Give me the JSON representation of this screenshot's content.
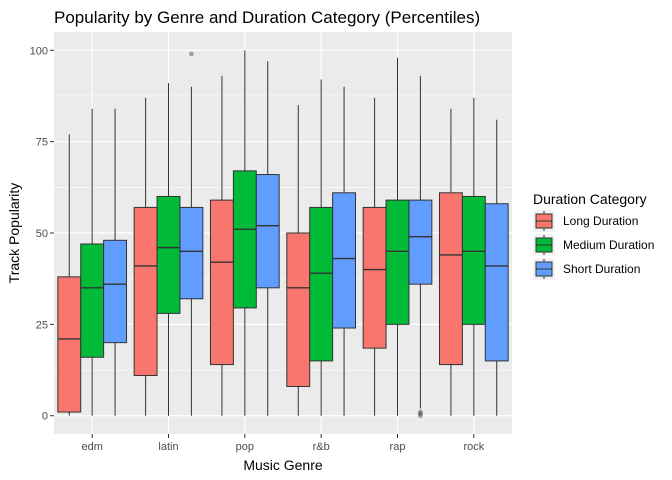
{
  "chart_data": {
    "type": "boxplot",
    "title": "Popularity by Genre and Duration Category (Percentiles)",
    "xlabel": "Music Genre",
    "ylabel": "Track Popularity",
    "ylim": [
      0,
      100
    ],
    "yticks": [
      0,
      25,
      50,
      75,
      100
    ],
    "grid": true,
    "legend_placement": "right",
    "legend_title": "Duration Category",
    "categories": [
      "edm",
      "latin",
      "pop",
      "r&b",
      "rap",
      "rock"
    ],
    "series": [
      {
        "name": "Long Duration",
        "color": "#F8766D",
        "boxes": [
          {
            "min": 0,
            "q1": 1,
            "median": 21,
            "q3": 38,
            "max": 77,
            "outliers": []
          },
          {
            "min": 0,
            "q1": 11,
            "median": 41,
            "q3": 57,
            "max": 87,
            "outliers": []
          },
          {
            "min": 0,
            "q1": 14,
            "median": 42,
            "q3": 59,
            "max": 93,
            "outliers": []
          },
          {
            "min": 0,
            "q1": 8,
            "median": 35,
            "q3": 50,
            "max": 85,
            "outliers": []
          },
          {
            "min": 0,
            "q1": 18.5,
            "median": 40,
            "q3": 57,
            "max": 87,
            "outliers": []
          },
          {
            "min": 0,
            "q1": 14,
            "median": 44,
            "q3": 61,
            "max": 84,
            "outliers": []
          }
        ]
      },
      {
        "name": "Medium Duration",
        "color": "#00BA38",
        "boxes": [
          {
            "min": 0,
            "q1": 16,
            "median": 35,
            "q3": 47,
            "max": 84,
            "outliers": []
          },
          {
            "min": 0,
            "q1": 28,
            "median": 46,
            "q3": 60,
            "max": 91,
            "outliers": []
          },
          {
            "min": 0,
            "q1": 29.5,
            "median": 51,
            "q3": 67,
            "max": 100,
            "outliers": []
          },
          {
            "min": 0,
            "q1": 15,
            "median": 39,
            "q3": 57,
            "max": 92,
            "outliers": []
          },
          {
            "min": 0,
            "q1": 25,
            "median": 45,
            "q3": 59,
            "max": 98,
            "outliers": []
          },
          {
            "min": 0,
            "q1": 25,
            "median": 45,
            "q3": 60,
            "max": 87,
            "outliers": []
          }
        ]
      },
      {
        "name": "Short Duration",
        "color": "#619CFF",
        "boxes": [
          {
            "min": 0,
            "q1": 20,
            "median": 36,
            "q3": 48,
            "max": 84,
            "outliers": []
          },
          {
            "min": 0,
            "q1": 32,
            "median": 45,
            "q3": 57,
            "max": 90,
            "outliers": [
              99
            ]
          },
          {
            "min": 0,
            "q1": 35,
            "median": 52,
            "q3": 66,
            "max": 97,
            "outliers": []
          },
          {
            "min": 0,
            "q1": 24,
            "median": 43,
            "q3": 61,
            "max": 90,
            "outliers": []
          },
          {
            "min": 2,
            "q1": 36,
            "median": 49,
            "q3": 59,
            "max": 93,
            "outliers": [
              0,
              0.5,
              1
            ]
          },
          {
            "min": 0,
            "q1": 15,
            "median": 41,
            "q3": 58,
            "max": 81,
            "outliers": []
          }
        ]
      }
    ]
  }
}
